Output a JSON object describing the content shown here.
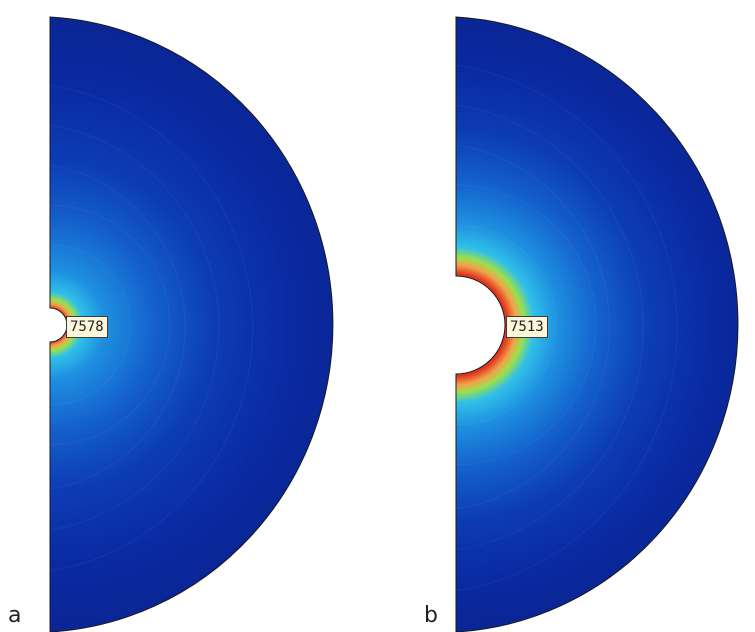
{
  "panels": [
    {
      "label": "a",
      "annotation": "7578"
    },
    {
      "label": "b",
      "annotation": "7513"
    }
  ],
  "colors": {
    "hot": "#e0351e",
    "warm": "#f2a24a",
    "mid": "#7fd64a",
    "cool": "#2f9fe6",
    "deep": "#0a2aa0",
    "background": "#ffffff"
  }
}
